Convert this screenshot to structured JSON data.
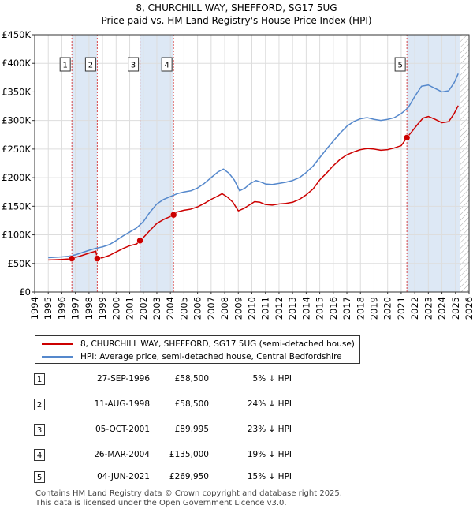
{
  "chart_data": {
    "type": "line",
    "title": "8, CHURCHILL WAY, SHEFFORD, SG17 5UG",
    "subtitle": "Price paid vs. HM Land Registry's House Price Index (HPI)",
    "xlim": [
      1994,
      2026
    ],
    "ylim": [
      0,
      450000
    ],
    "x_ticks": [
      1994,
      1995,
      1996,
      1997,
      1998,
      1999,
      2000,
      2001,
      2002,
      2003,
      2004,
      2005,
      2006,
      2007,
      2008,
      2009,
      2010,
      2011,
      2012,
      2013,
      2014,
      2015,
      2016,
      2017,
      2018,
      2019,
      2020,
      2021,
      2022,
      2023,
      2024,
      2025,
      2026
    ],
    "y_ticks": [
      {
        "value": 0,
        "label": "£0"
      },
      {
        "value": 50000,
        "label": "£50K"
      },
      {
        "value": 100000,
        "label": "£100K"
      },
      {
        "value": 150000,
        "label": "£150K"
      },
      {
        "value": 200000,
        "label": "£200K"
      },
      {
        "value": 250000,
        "label": "£250K"
      },
      {
        "value": 300000,
        "label": "£300K"
      },
      {
        "value": 350000,
        "label": "£350K"
      },
      {
        "value": 400000,
        "label": "£400K"
      },
      {
        "value": 450000,
        "label": "£450K"
      }
    ],
    "colors": {
      "property": "#cc0000",
      "hpi": "#5588cc",
      "shade": "#dde8f5",
      "grid": "#dddddd",
      "vline": "#cc0000"
    },
    "series": [
      {
        "name": "8, CHURCHILL WAY, SHEFFORD, SG17 5UG (semi-detached house)",
        "key": "property",
        "points": [
          [
            1995.0,
            56000
          ],
          [
            1995.5,
            56500
          ],
          [
            1996.0,
            57000
          ],
          [
            1996.5,
            57800
          ],
          [
            1996.74,
            58500
          ],
          [
            1997.0,
            60500
          ],
          [
            1997.5,
            64000
          ],
          [
            1998.0,
            68000
          ],
          [
            1998.5,
            71500
          ],
          [
            1998.61,
            58500
          ],
          [
            1999.0,
            60000
          ],
          [
            1999.5,
            64000
          ],
          [
            2000.0,
            70000
          ],
          [
            2000.5,
            76000
          ],
          [
            2001.0,
            81000
          ],
          [
            2001.5,
            84000
          ],
          [
            2001.76,
            89995
          ],
          [
            2002.0,
            95000
          ],
          [
            2002.5,
            108000
          ],
          [
            2003.0,
            120000
          ],
          [
            2003.5,
            127000
          ],
          [
            2004.0,
            132000
          ],
          [
            2004.23,
            135000
          ],
          [
            2004.5,
            140000
          ],
          [
            2005.0,
            143000
          ],
          [
            2005.5,
            145000
          ],
          [
            2006.0,
            149000
          ],
          [
            2006.5,
            155000
          ],
          [
            2007.0,
            162000
          ],
          [
            2007.5,
            168000
          ],
          [
            2007.8,
            172000
          ],
          [
            2008.2,
            166000
          ],
          [
            2008.6,
            157000
          ],
          [
            2009.0,
            142000
          ],
          [
            2009.4,
            146000
          ],
          [
            2009.8,
            152000
          ],
          [
            2010.2,
            158000
          ],
          [
            2010.6,
            157000
          ],
          [
            2011.0,
            153000
          ],
          [
            2011.5,
            152000
          ],
          [
            2012.0,
            154000
          ],
          [
            2012.5,
            155000
          ],
          [
            2013.0,
            157000
          ],
          [
            2013.5,
            162000
          ],
          [
            2014.0,
            170000
          ],
          [
            2014.5,
            180000
          ],
          [
            2015.0,
            196000
          ],
          [
            2015.5,
            208000
          ],
          [
            2016.0,
            221000
          ],
          [
            2016.5,
            232000
          ],
          [
            2017.0,
            240000
          ],
          [
            2017.5,
            245000
          ],
          [
            2018.0,
            249000
          ],
          [
            2018.5,
            251000
          ],
          [
            2019.0,
            250000
          ],
          [
            2019.5,
            248000
          ],
          [
            2020.0,
            249000
          ],
          [
            2020.5,
            252000
          ],
          [
            2021.0,
            256000
          ],
          [
            2021.42,
            269950
          ],
          [
            2021.8,
            281000
          ],
          [
            2022.2,
            293000
          ],
          [
            2022.6,
            304000
          ],
          [
            2023.0,
            307000
          ],
          [
            2023.5,
            302000
          ],
          [
            2024.0,
            296000
          ],
          [
            2024.5,
            298000
          ],
          [
            2024.9,
            312000
          ],
          [
            2025.2,
            326000
          ]
        ]
      },
      {
        "name": "HPI: Average price, semi-detached house, Central Bedfordshire",
        "key": "hpi",
        "points": [
          [
            1995.0,
            60000
          ],
          [
            1995.5,
            60800
          ],
          [
            1996.0,
            61500
          ],
          [
            1996.5,
            62500
          ],
          [
            1997.0,
            65000
          ],
          [
            1997.5,
            69000
          ],
          [
            1998.0,
            73000
          ],
          [
            1998.5,
            76500
          ],
          [
            1999.0,
            79000
          ],
          [
            1999.5,
            83000
          ],
          [
            2000.0,
            90000
          ],
          [
            2000.5,
            98000
          ],
          [
            2001.0,
            105000
          ],
          [
            2001.5,
            112000
          ],
          [
            2002.0,
            123000
          ],
          [
            2002.5,
            140000
          ],
          [
            2003.0,
            154000
          ],
          [
            2003.5,
            162000
          ],
          [
            2004.0,
            167000
          ],
          [
            2004.5,
            172000
          ],
          [
            2005.0,
            175000
          ],
          [
            2005.5,
            177000
          ],
          [
            2006.0,
            182000
          ],
          [
            2006.5,
            190000
          ],
          [
            2007.0,
            200000
          ],
          [
            2007.5,
            210000
          ],
          [
            2007.9,
            215000
          ],
          [
            2008.3,
            208000
          ],
          [
            2008.7,
            196000
          ],
          [
            2009.1,
            177000
          ],
          [
            2009.5,
            182000
          ],
          [
            2009.9,
            190000
          ],
          [
            2010.3,
            195000
          ],
          [
            2010.7,
            192000
          ],
          [
            2011.0,
            189000
          ],
          [
            2011.5,
            188000
          ],
          [
            2012.0,
            190000
          ],
          [
            2012.5,
            192000
          ],
          [
            2013.0,
            195000
          ],
          [
            2013.5,
            200000
          ],
          [
            2014.0,
            209000
          ],
          [
            2014.5,
            220000
          ],
          [
            2015.0,
            235000
          ],
          [
            2015.5,
            250000
          ],
          [
            2016.0,
            264000
          ],
          [
            2016.5,
            278000
          ],
          [
            2017.0,
            290000
          ],
          [
            2017.5,
            298000
          ],
          [
            2018.0,
            303000
          ],
          [
            2018.5,
            305000
          ],
          [
            2019.0,
            302000
          ],
          [
            2019.5,
            300000
          ],
          [
            2020.0,
            302000
          ],
          [
            2020.5,
            305000
          ],
          [
            2021.0,
            312000
          ],
          [
            2021.5,
            322000
          ],
          [
            2022.0,
            342000
          ],
          [
            2022.5,
            360000
          ],
          [
            2023.0,
            362000
          ],
          [
            2023.5,
            356000
          ],
          [
            2024.0,
            350000
          ],
          [
            2024.5,
            352000
          ],
          [
            2024.9,
            366000
          ],
          [
            2025.2,
            382000
          ]
        ]
      }
    ],
    "sales": [
      {
        "n": "1",
        "x": 1996.74,
        "price": 58500,
        "date": "27-SEP-1996",
        "price_label": "£58,500",
        "hpi_label": "5% ↓ HPI"
      },
      {
        "n": "2",
        "x": 1998.61,
        "price": 58500,
        "date": "11-AUG-1998",
        "price_label": "£58,500",
        "hpi_label": "24% ↓ HPI"
      },
      {
        "n": "3",
        "x": 2001.76,
        "price": 89995,
        "date": "05-OCT-2001",
        "price_label": "£89,995",
        "hpi_label": "23% ↓ HPI"
      },
      {
        "n": "4",
        "x": 2004.23,
        "price": 135000,
        "date": "26-MAR-2004",
        "price_label": "£135,000",
        "hpi_label": "19% ↓ HPI"
      },
      {
        "n": "5",
        "x": 2021.42,
        "price": 269950,
        "date": "04-JUN-2021",
        "price_label": "£269,950",
        "hpi_label": "15% ↓ HPI"
      }
    ],
    "shaded_ranges": [
      [
        1996.74,
        1998.61
      ],
      [
        2001.76,
        2004.23
      ],
      [
        2021.42,
        2025.3
      ]
    ],
    "hatched_after": 2025.3
  },
  "legend": {
    "property": "8, CHURCHILL WAY, SHEFFORD, SG17 5UG (semi-detached house)",
    "hpi": "HPI: Average price, semi-detached house, Central Bedfordshire"
  },
  "footer": {
    "line1": "Contains HM Land Registry data © Crown copyright and database right 2025.",
    "line2": "This data is licensed under the Open Government Licence v3.0."
  }
}
